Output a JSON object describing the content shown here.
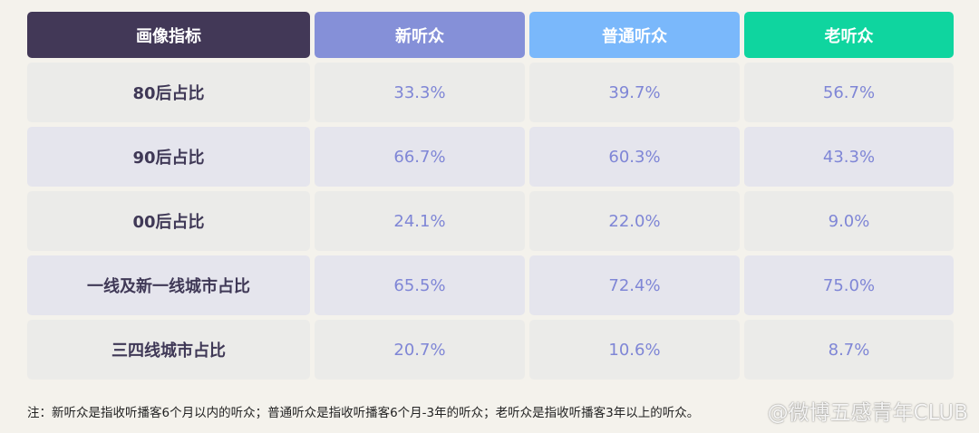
{
  "table": {
    "headers": [
      "画像指标",
      "新听众",
      "普通听众",
      "老听众"
    ],
    "rows": [
      {
        "label": "80后占比",
        "values": [
          "33.3%",
          "39.7%",
          "56.7%"
        ]
      },
      {
        "label": "90后占比",
        "values": [
          "66.7%",
          "60.3%",
          "43.3%"
        ]
      },
      {
        "label": "00后占比",
        "values": [
          "24.1%",
          "22.0%",
          "9.0%"
        ]
      },
      {
        "label": "一线及新一线城市占比",
        "values": [
          "65.5%",
          "72.4%",
          "75.0%"
        ]
      },
      {
        "label": "三四线城市占比",
        "values": [
          "20.7%",
          "10.6%",
          "8.7%"
        ]
      }
    ],
    "header_colors": [
      "#423857",
      "#8590d8",
      "#7ab8fb",
      "#0fd59f"
    ]
  },
  "footnote": "注：新听众是指收听播客6个月以内的听众；普通听众是指收听播客6个月-3年的听众；老听众是指收听播客3年以上的听众。",
  "watermark": "@微博五感青年CLUB"
}
